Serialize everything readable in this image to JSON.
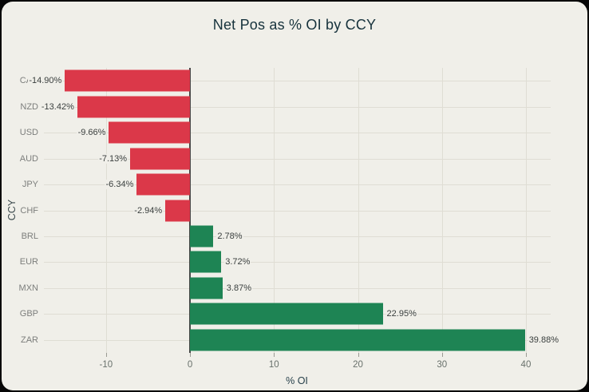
{
  "chart_data": {
    "type": "bar",
    "orientation": "horizontal",
    "title": "Net Pos as % OI by CCY",
    "xlabel": "% OI",
    "ylabel": "CCY",
    "categories": [
      "CAD",
      "NZD",
      "USD",
      "AUD",
      "JPY",
      "CHF",
      "BRL",
      "EUR",
      "MXN",
      "GBP",
      "ZAR"
    ],
    "values": [
      -14.9,
      -13.42,
      -9.66,
      -7.13,
      -6.34,
      -2.94,
      2.78,
      3.72,
      3.87,
      22.95,
      39.88
    ],
    "value_labels": [
      "-14.90%",
      "-13.42%",
      "-9.66%",
      "-7.13%",
      "-6.34%",
      "-2.94%",
      "2.78%",
      "3.72%",
      "3.87%",
      "22.95%",
      "39.88%"
    ],
    "x_ticks": [
      -10,
      0,
      10,
      20,
      30,
      40
    ],
    "x_tick_labels": [
      "-10",
      "0",
      "10",
      "20",
      "30",
      "40"
    ],
    "xlim": [
      -17.4,
      42.95
    ],
    "grid": true,
    "colors": {
      "negative_bar": "#db3849",
      "positive_bar": "#1e8454",
      "background": "#f0efe9",
      "title_text": "#16323c",
      "gridline": "#dfddd4",
      "zero_line": "#474747"
    }
  }
}
